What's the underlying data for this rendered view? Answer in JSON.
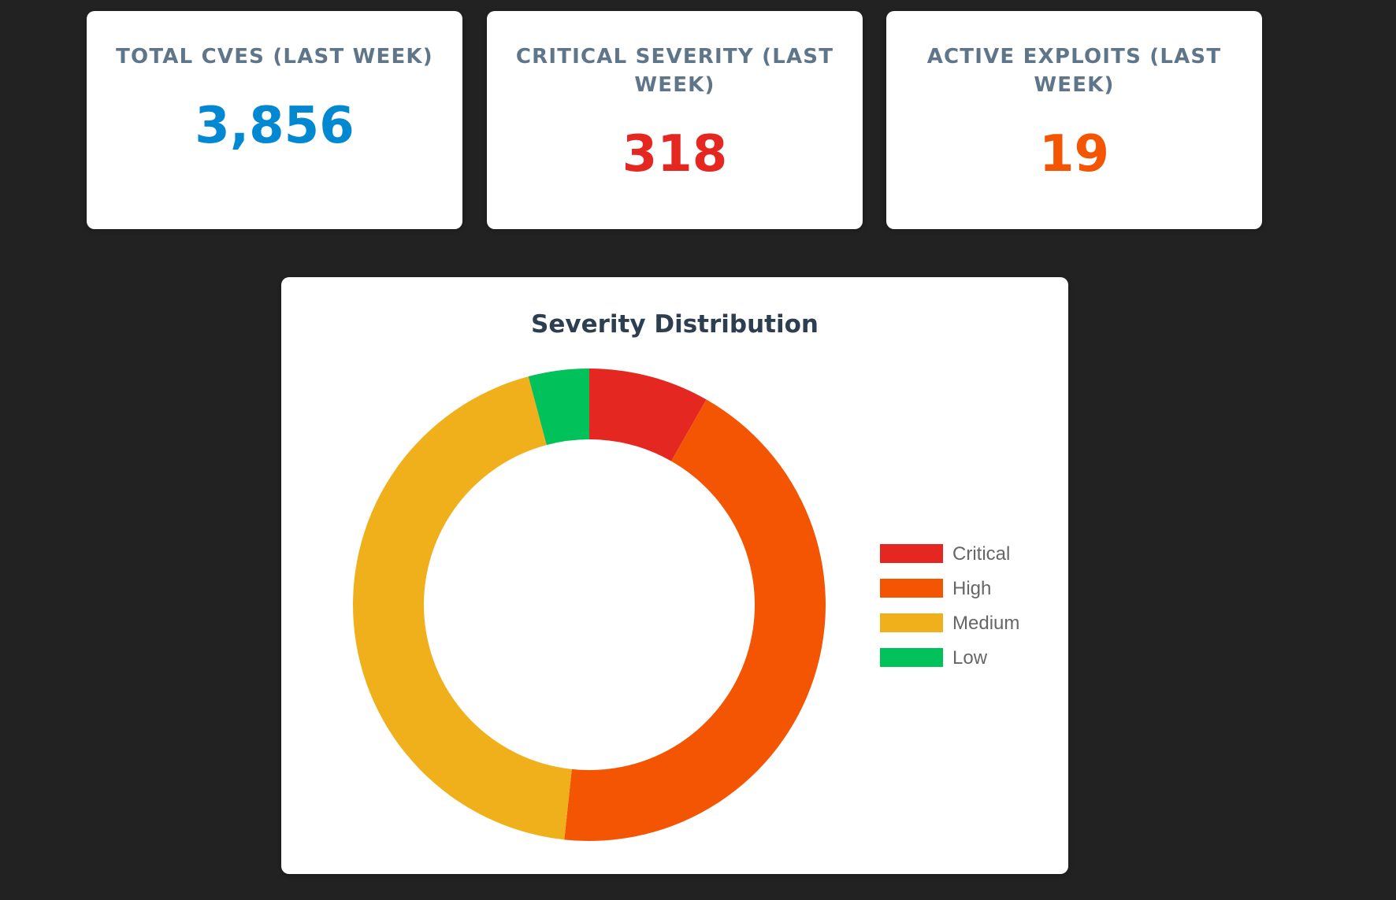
{
  "stats": [
    {
      "label": "TOTAL CVES (LAST WEEK)",
      "value": "3,856",
      "color": "#0288d1"
    },
    {
      "label": "CRITICAL SEVERITY (LAST WEEK)",
      "value": "318",
      "color": "#e52722"
    },
    {
      "label": "ACTIVE EXPLOITS (LAST WEEK)",
      "value": "19",
      "color": "#f45502"
    }
  ],
  "chart_data": {
    "type": "pie",
    "variant": "doughnut",
    "title": "Severity Distribution",
    "categories": [
      "Critical",
      "High",
      "Medium",
      "Low"
    ],
    "values": [
      318,
      1675,
      1703,
      160
    ],
    "colors": [
      "#e52722",
      "#f45502",
      "#f0b01c",
      "#00c15a"
    ],
    "legend": "right"
  }
}
